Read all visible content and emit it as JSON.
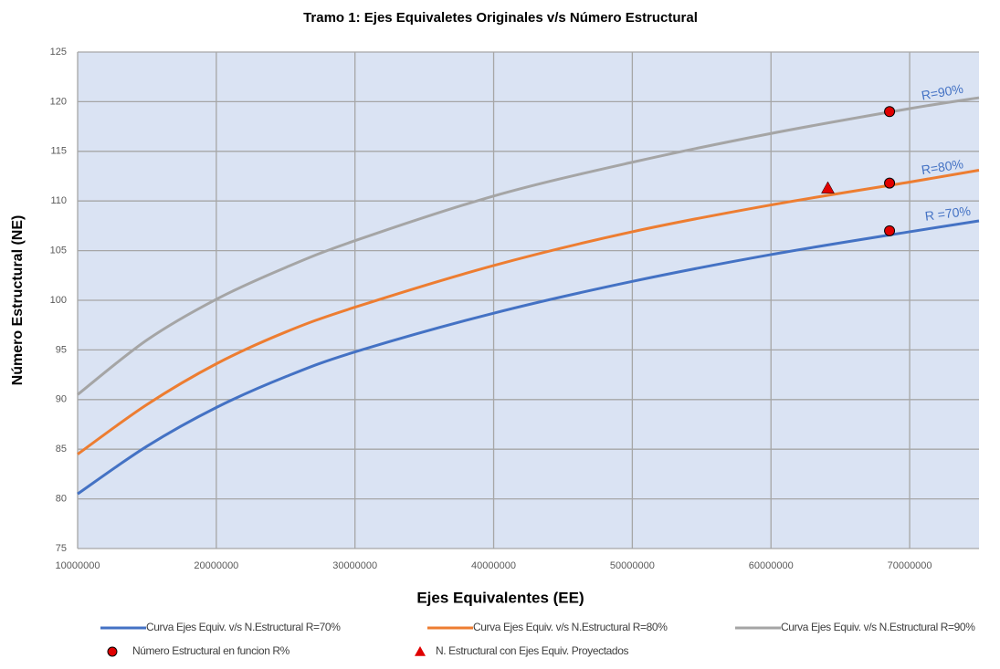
{
  "chart_data": {
    "type": "line",
    "title": "Tramo 1: Ejes Equivaletes Originales v/s Número Estructural",
    "xlabel": "Ejes Equivalentes (EE)",
    "ylabel": "Número Estructural (NE)",
    "xlim": [
      10000000,
      75000000
    ],
    "xticks": [
      10000000,
      20000000,
      30000000,
      40000000,
      50000000,
      60000000,
      70000000
    ],
    "ylim": [
      75,
      125
    ],
    "yticks": [
      75,
      80,
      85,
      90,
      95,
      100,
      105,
      110,
      115,
      120,
      125
    ],
    "grid": true,
    "legend": "bottom",
    "series": [
      {
        "name": "Curva Ejes Equiv. v/s N.Estructural R=70%",
        "color": "#4472c4",
        "marker": "none",
        "x": [
          10000000,
          15000000,
          20000000,
          25000000,
          30000000,
          40000000,
          50000000,
          60000000,
          70000000,
          75000000
        ],
        "values": [
          80.5,
          85.3,
          89.2,
          92.3,
          94.8,
          98.7,
          101.9,
          104.6,
          106.9,
          108.0
        ]
      },
      {
        "name": "Curva Ejes Equiv. v/s N.Estructural R=80%",
        "color": "#ed7d31",
        "marker": "none",
        "x": [
          10000000,
          15000000,
          20000000,
          25000000,
          30000000,
          40000000,
          50000000,
          60000000,
          70000000,
          75000000
        ],
        "values": [
          84.5,
          89.5,
          93.6,
          96.8,
          99.3,
          103.5,
          106.9,
          109.6,
          111.9,
          113.1
        ]
      },
      {
        "name": "Curva Ejes Equiv. v/s N.Estructural R=90%",
        "color": "#a5a5a5",
        "marker": "none",
        "x": [
          10000000,
          15000000,
          20000000,
          25000000,
          30000000,
          40000000,
          50000000,
          60000000,
          70000000,
          75000000
        ],
        "values": [
          90.5,
          96.0,
          100.1,
          103.3,
          106.0,
          110.5,
          113.9,
          116.8,
          119.3,
          120.4
        ]
      },
      {
        "name": "Número Estructural en funcion R%",
        "color": "#e00000",
        "marker": "circle",
        "x": [
          68550000,
          68550000,
          68550000
        ],
        "values": [
          107.0,
          111.8,
          119.0
        ]
      },
      {
        "name": "N. Estructural con Ejes Equiv. Proyectados",
        "color": "#e00000",
        "marker": "triangle",
        "x": [
          64100000
        ],
        "values": [
          111.3
        ]
      }
    ],
    "annotations": [
      "R=90%",
      "R=80%",
      "R =70%"
    ]
  }
}
